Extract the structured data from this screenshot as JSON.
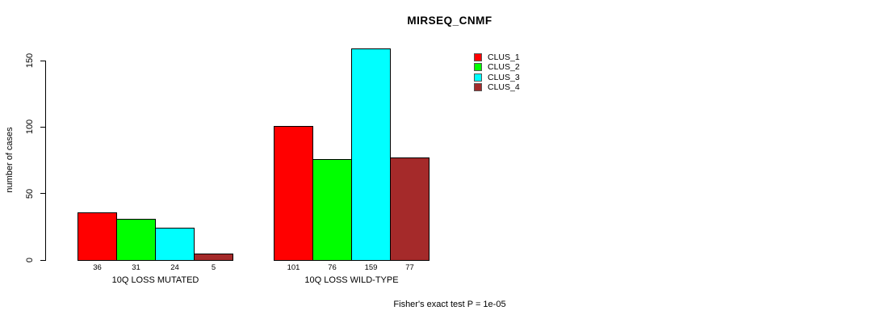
{
  "chart_data": {
    "type": "bar",
    "title": "MIRSEQ_CNMF",
    "ylabel": "number of cases",
    "xlabel": "",
    "categories": [
      "10Q LOSS MUTATED",
      "10Q LOSS WILD-TYPE"
    ],
    "series": [
      {
        "name": "CLUS_1",
        "color": "#FF0000",
        "values": [
          36,
          101
        ]
      },
      {
        "name": "CLUS_2",
        "color": "#00FF00",
        "values": [
          31,
          76
        ]
      },
      {
        "name": "CLUS_3",
        "color": "#00FFFF",
        "values": [
          24,
          159
        ]
      },
      {
        "name": "CLUS_4",
        "color": "#A52A2A",
        "values": [
          5,
          77
        ]
      }
    ],
    "yticks": [
      0,
      50,
      100,
      150
    ],
    "ylim": [
      0,
      159
    ],
    "grid": false,
    "bar_value_labels": true,
    "legend_position": "top-right",
    "annotation": "Fisher's exact test P = 1e-05"
  }
}
